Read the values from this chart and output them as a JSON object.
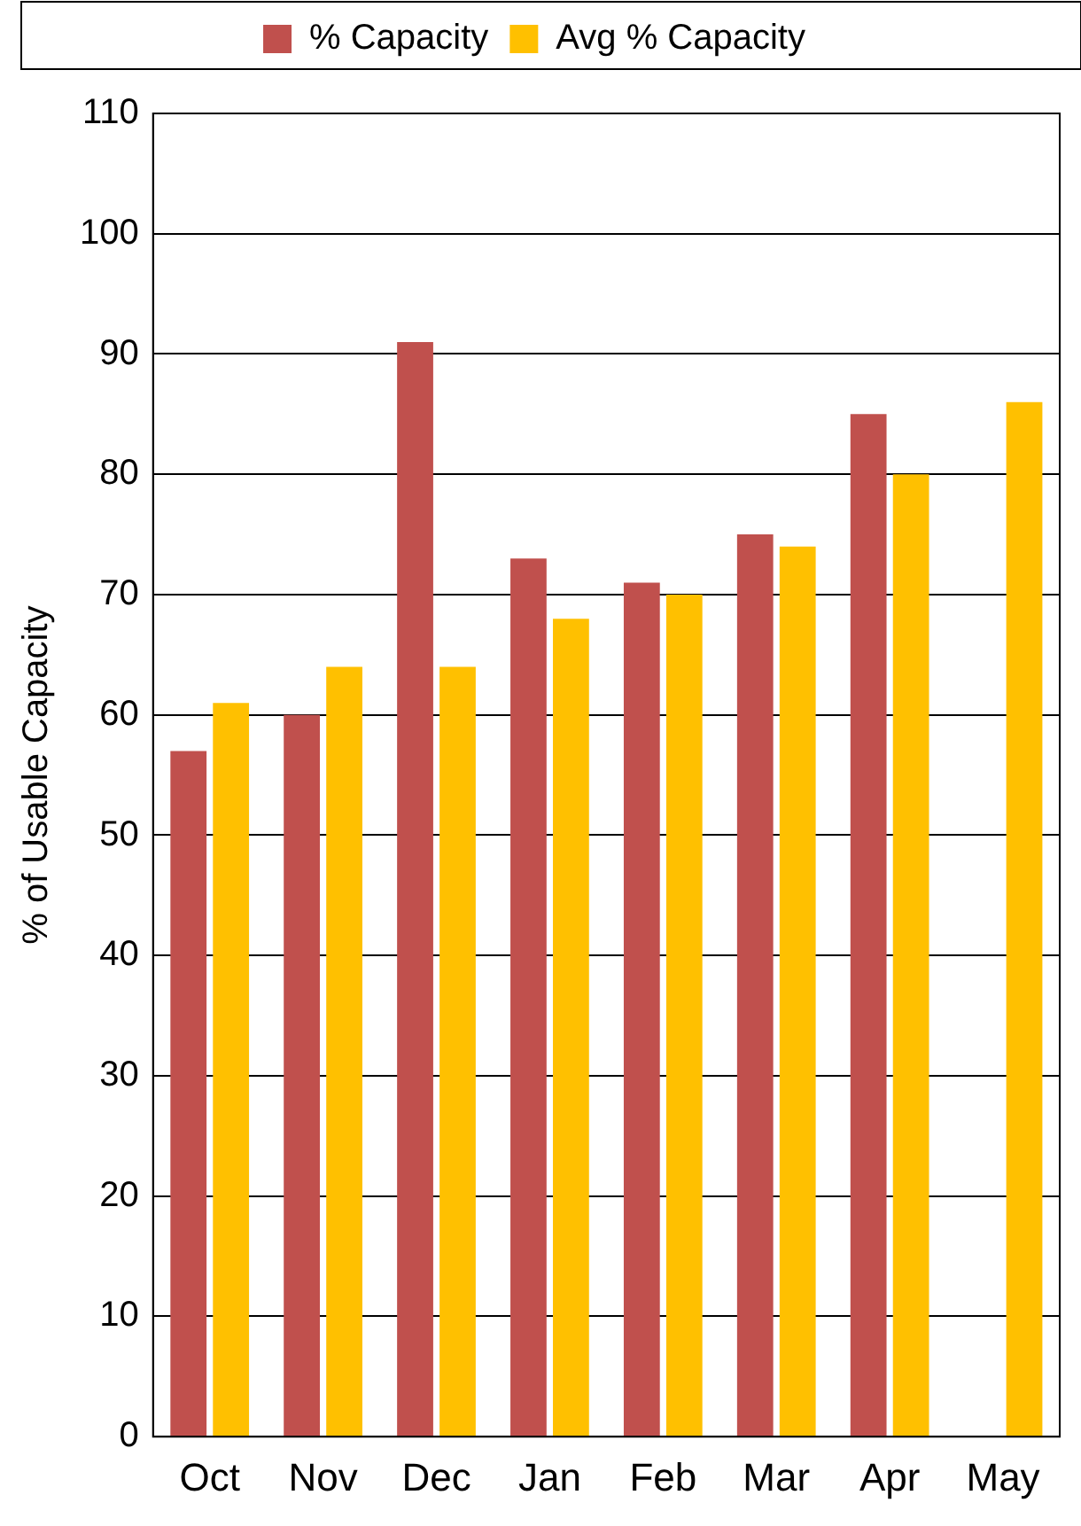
{
  "chart_data": {
    "type": "bar",
    "ylabel": "% of Usable Capacity",
    "categories": [
      "Oct",
      "Nov",
      "Dec",
      "Jan",
      "Feb",
      "Mar",
      "Apr",
      "May"
    ],
    "series": [
      {
        "name": "% Capacity",
        "color": "#c0504d",
        "values": [
          57,
          60,
          91,
          73,
          71,
          75,
          85,
          null
        ]
      },
      {
        "name": "Avg % Capacity",
        "color": "#ffc000",
        "values": [
          61,
          64,
          64,
          68,
          70,
          74,
          80,
          86
        ]
      }
    ],
    "ylim": [
      0,
      110
    ],
    "yticks": [
      0,
      10,
      20,
      30,
      40,
      50,
      60,
      70,
      80,
      90,
      100,
      110
    ],
    "grid": "y",
    "legend": "top"
  }
}
